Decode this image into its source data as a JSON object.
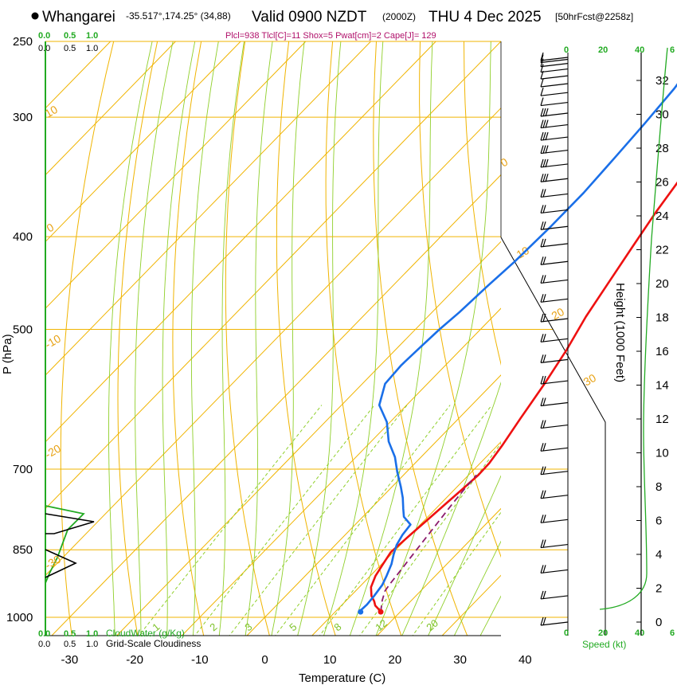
{
  "header": {
    "station": "Whangarei",
    "coords": "-35.517°,174.25° (34,88)",
    "valid": "Valid 0900 NZDT",
    "utc": "(2000Z)",
    "date": "THU 4 Dec 2025",
    "forecast": "[50hrFcst@2258z]",
    "params": "Plcl=938 Tlcl[C]=11 Shox=5 Pwat[cm]=2 Cape[J]= 129"
  },
  "colors": {
    "temperature": "#ee1111",
    "dewpoint": "#1a6fe8",
    "parcel": "#8b1a6b",
    "isotherm": "#f0b400",
    "mixing_ratio": "#8fcf2a",
    "cloud": "#22aa22"
  },
  "chart_data": {
    "type": "line",
    "title": "Whangarei -35.517°,174.25° (34,88) Valid 0900 NZDT (2000Z) THU 4 Dec 2025 [50hrFcst@2258z]",
    "xlabel": "Temperature (C)",
    "ylabel": "P (hPa)",
    "y2label": "Height (1000 Feet)",
    "xlim": [
      -35,
      45
    ],
    "ylim": [
      1000,
      250
    ],
    "x_ticks": [
      "-30",
      "-20",
      "-10",
      "0",
      "10",
      "20",
      "30",
      "40"
    ],
    "p_ticks": [
      {
        "p": 250,
        "label": "250"
      },
      {
        "p": 300,
        "label": "300"
      },
      {
        "p": 400,
        "label": "400"
      },
      {
        "p": 500,
        "label": "500"
      },
      {
        "p": 700,
        "label": "700"
      },
      {
        "p": 850,
        "label": "850"
      },
      {
        "p": 1000,
        "label": "1000"
      }
    ],
    "height_ticks": [
      "0",
      "2",
      "4",
      "6",
      "8",
      "10",
      "12",
      "14",
      "16",
      "18",
      "20",
      "22",
      "24",
      "26",
      "28",
      "30",
      "32"
    ],
    "top_scale_labels": [
      "0.0",
      "0.5",
      "1.0"
    ],
    "bottom_scale_labels": [
      "0.0",
      "0.5",
      "1.0"
    ],
    "cloud_water_label": "CloudWater (g/Kg)",
    "cloudiness_label": "Grid-Scale Cloudiness",
    "speed_label": "Speed (kt)",
    "speed_ticks": [
      "0",
      "20",
      "40",
      "6"
    ],
    "isotherm_labels": [
      "10",
      "0",
      "-10",
      "-20",
      "-30",
      "0",
      "10",
      "20",
      "30"
    ],
    "mixing_ratio_labels": [
      "1",
      "2",
      "3",
      "5",
      "8",
      "12",
      "20"
    ],
    "series": [
      {
        "name": "Temperature",
        "x": [
          17,
          16.2,
          15.2,
          14.4,
          13.2,
          11.8,
          10.8,
          10.2,
          9.6,
          10.0,
          10.4,
          10.8,
          11.2,
          11.5,
          11.4,
          10.7,
          9.5,
          8.0,
          6.3,
          4.3,
          2.6,
          1.0,
          -0.6,
          -2.0,
          -3.0,
          -3.4,
          -3.0,
          -2.5,
          -1.5
        ],
        "p": [
          987,
          980,
          972,
          962,
          950,
          930,
          905,
          880,
          855,
          820,
          790,
          760,
          733,
          710,
          690,
          660,
          620,
          570,
          525,
          485,
          445,
          410,
          377,
          345,
          318,
          295,
          275,
          262,
          245
        ]
      },
      {
        "name": "Dewpoint",
        "x": [
          13.9,
          13.7,
          13.8,
          13.6,
          13.2,
          12.5,
          11.5,
          10.4,
          9.4,
          8.8,
          8.5,
          6.3,
          5.0,
          3.3,
          1.3,
          -1.4,
          -4.0,
          -7.3,
          -10.5,
          -14.2,
          -16.5,
          -16.8,
          -16.6,
          -16.3,
          -15.8,
          -15.4,
          -14.9,
          -14.6,
          -14.6,
          -15.1,
          -15.6,
          -16.3,
          -17.3,
          -18.0
        ],
        "p": [
          987,
          982,
          970,
          950,
          925,
          905,
          880,
          860,
          840,
          820,
          800,
          785,
          770,
          750,
          730,
          705,
          680,
          655,
          625,
          600,
          570,
          545,
          525,
          500,
          480,
          450,
          425,
          390,
          360,
          330,
          305,
          280,
          262,
          245
        ]
      },
      {
        "name": "Parcel",
        "x": [
          17,
          15.5,
          14.5,
          14.2,
          13.8,
          13.2,
          12.6,
          11.8,
          11.4,
          11.2
        ],
        "p": [
          987,
          960,
          938,
          920,
          890,
          850,
          810,
          760,
          730,
          710
        ]
      }
    ],
    "wind_barb_count": 35,
    "annotations": [
      "Plcl=938",
      "Tlcl[C]=11",
      "Shox=5",
      "Pwat[cm]=2",
      "Cape[J]= 129"
    ]
  }
}
